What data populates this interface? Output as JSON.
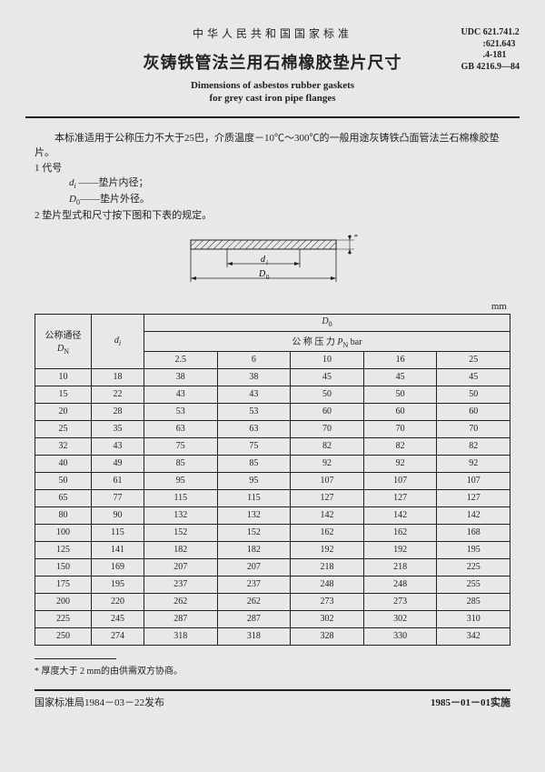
{
  "header": {
    "overline": "中华人民共和国国家标准",
    "title_cn": "灰铸铁管法兰用石棉橡胶垫片尺寸",
    "title_en1": "Dimensions of asbestos rubber gaskets",
    "title_en2": "for grey cast iron pipe flanges",
    "udc1": "UDC 621.741.2",
    "udc2": ":621.643",
    "udc3": ".4-181",
    "gb": "GB 4216.9—84"
  },
  "intro": {
    "p1": "本标准适用于公称压力不大于25巴，介质温度－10℃～300℃的一般用途灰铸铁凸面管法兰石棉橡胶垫片。",
    "s1": "1  代号",
    "sym1a": "d",
    "sym1b": "i",
    "sym1c": " ——垫片内径；",
    "sym2a": "D",
    "sym2b": "0",
    "sym2c": "——垫片外径。",
    "s2": "2  垫片型式和尺寸按下图和下表的规定。"
  },
  "diagram": {
    "di": "d",
    "di_sub": "i",
    "D0": "D",
    "D0_sub": "0"
  },
  "table": {
    "unit": "mm",
    "h_dn1": "公称通径",
    "h_dn2": "D",
    "h_dn2_sub": "N",
    "h_di": "d",
    "h_di_sub": "i",
    "h_d0": "D",
    "h_d0_sub": "0",
    "h_pn": "公  称  压  力  ",
    "h_pn_sym": "P",
    "h_pn_sub": "N",
    "h_pn_unit": "  bar",
    "pressures": [
      "2.5",
      "6",
      "10",
      "16",
      "25"
    ],
    "rows": [
      {
        "dn": "10",
        "di": "18",
        "v": [
          "38",
          "38",
          "45",
          "45",
          "45"
        ]
      },
      {
        "dn": "15",
        "di": "22",
        "v": [
          "43",
          "43",
          "50",
          "50",
          "50"
        ]
      },
      {
        "dn": "20",
        "di": "28",
        "v": [
          "53",
          "53",
          "60",
          "60",
          "60"
        ]
      },
      {
        "dn": "25",
        "di": "35",
        "v": [
          "63",
          "63",
          "70",
          "70",
          "70"
        ]
      },
      {
        "dn": "32",
        "di": "43",
        "v": [
          "75",
          "75",
          "82",
          "82",
          "82"
        ]
      },
      {
        "dn": "40",
        "di": "49",
        "v": [
          "85",
          "85",
          "92",
          "92",
          "92"
        ]
      },
      {
        "dn": "50",
        "di": "61",
        "v": [
          "95",
          "95",
          "107",
          "107",
          "107"
        ]
      },
      {
        "dn": "65",
        "di": "77",
        "v": [
          "115",
          "115",
          "127",
          "127",
          "127"
        ]
      },
      {
        "dn": "80",
        "di": "90",
        "v": [
          "132",
          "132",
          "142",
          "142",
          "142"
        ]
      },
      {
        "dn": "100",
        "di": "115",
        "v": [
          "152",
          "152",
          "162",
          "162",
          "168"
        ]
      },
      {
        "dn": "125",
        "di": "141",
        "v": [
          "182",
          "182",
          "192",
          "192",
          "195"
        ]
      },
      {
        "dn": "150",
        "di": "169",
        "v": [
          "207",
          "207",
          "218",
          "218",
          "225"
        ]
      },
      {
        "dn": "175",
        "di": "195",
        "v": [
          "237",
          "237",
          "248",
          "248",
          "255"
        ]
      },
      {
        "dn": "200",
        "di": "220",
        "v": [
          "262",
          "262",
          "273",
          "273",
          "285"
        ]
      },
      {
        "dn": "225",
        "di": "245",
        "v": [
          "287",
          "287",
          "302",
          "302",
          "310"
        ]
      },
      {
        "dn": "250",
        "di": "274",
        "v": [
          "318",
          "318",
          "328",
          "330",
          "342"
        ]
      }
    ],
    "footnote": "*  厚度大于 2 mm的由供需双方协商。"
  },
  "footer": {
    "left": "国家标准局1984－03－22发布",
    "right": "1985－01－01实施"
  }
}
